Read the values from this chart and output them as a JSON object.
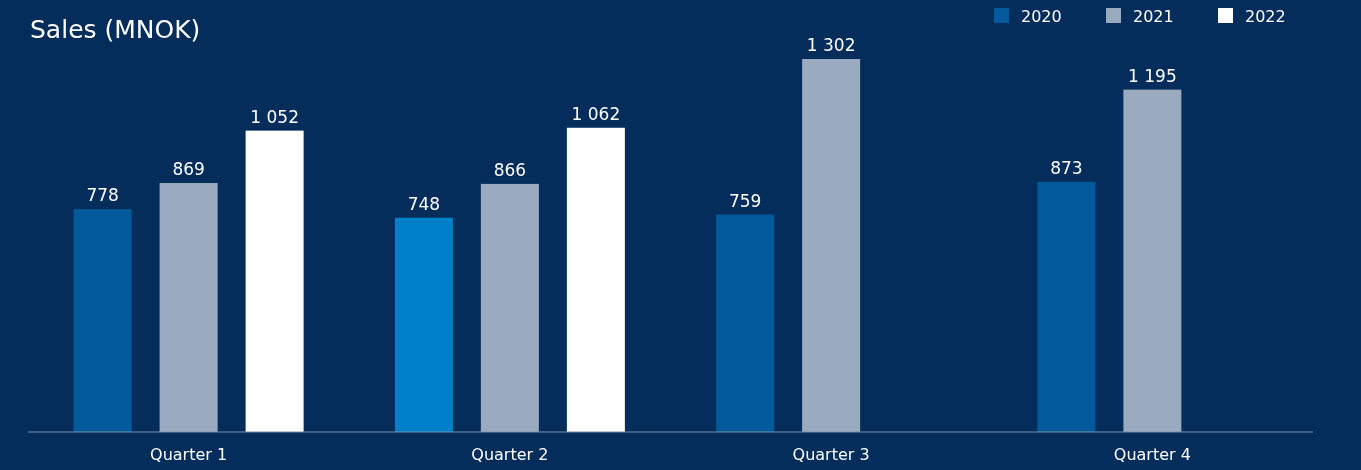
{
  "chart_data": {
    "type": "bar",
    "title": "Sales (MNOK)",
    "categories": [
      "Quarter 1",
      "Quarter 2",
      "Quarter 3",
      "Quarter 4"
    ],
    "series": [
      {
        "name": "2020",
        "color": "#005a9c",
        "colors": [
          "#005a9c",
          "#0080c8",
          "#005a9c",
          "#005a9c"
        ],
        "values": [
          778,
          748,
          759,
          873
        ],
        "value_labels": [
          "778",
          "748",
          "759",
          "873"
        ]
      },
      {
        "name": "2021",
        "color": "#9aaabf",
        "values": [
          869,
          866,
          1302,
          1195
        ],
        "value_labels": [
          "869",
          "866",
          "1 302",
          "1 195"
        ]
      },
      {
        "name": "2022",
        "color": "#ffffff",
        "values": [
          1052,
          1062,
          null,
          null
        ],
        "value_labels": [
          "1 052",
          "1 062",
          null,
          null
        ]
      }
    ],
    "legend": "top right",
    "grid": false
  }
}
